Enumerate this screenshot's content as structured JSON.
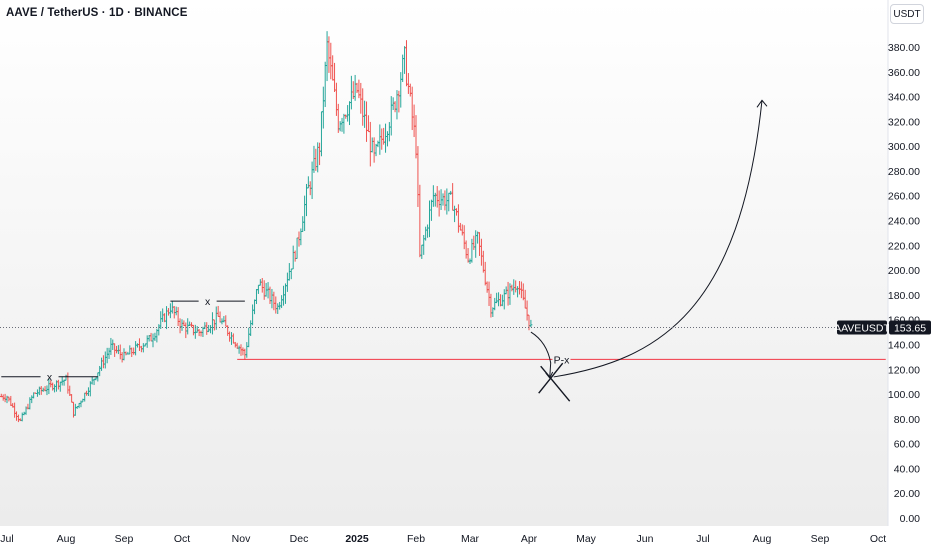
{
  "header": {
    "title": "AAVE / TetherUS · 1D · BINANCE",
    "unit_button": "USDT"
  },
  "price_tag": {
    "symbol": "AAVEUSDT",
    "price": "153.65"
  },
  "colors": {
    "up": "#26a69a",
    "down": "#ef5350",
    "line_level": "#f23645",
    "annotation": "#131722",
    "tag_bg": "#131722"
  },
  "chart_data": {
    "type": "ohlc",
    "title": "AAVE / TetherUS · 1D · BINANCE",
    "y_axis": {
      "ticks": [
        "380.00",
        "360.00",
        "340.00",
        "320.00",
        "300.00",
        "280.00",
        "260.00",
        "240.00",
        "220.00",
        "200.00",
        "180.00",
        "160.00",
        "140.00",
        "120.00",
        "100.00",
        "80.00",
        "60.00",
        "40.00",
        "20.00",
        "0.00"
      ],
      "tick_values": [
        380,
        360,
        340,
        320,
        300,
        280,
        260,
        240,
        220,
        200,
        180,
        160,
        140,
        120,
        100,
        80,
        60,
        40,
        20,
        0
      ],
      "range": [
        0,
        405
      ]
    },
    "x_axis": {
      "ticks": [
        "Jul",
        "Aug",
        "Sep",
        "Oct",
        "Nov",
        "Dec",
        "2025",
        "Feb",
        "Mar",
        "Apr",
        "May",
        "Jun",
        "Jul",
        "Aug",
        "Sep",
        "Oct"
      ],
      "bold": [
        "2025"
      ]
    },
    "price_path": [
      {
        "date": "2024-07-01",
        "close": 98
      },
      {
        "date": "2024-07-08",
        "close": 78
      },
      {
        "date": "2024-07-15",
        "close": 100
      },
      {
        "date": "2024-07-22",
        "close": 105
      },
      {
        "date": "2024-08-01",
        "close": 112
      },
      {
        "date": "2024-08-05",
        "close": 85
      },
      {
        "date": "2024-08-15",
        "close": 110
      },
      {
        "date": "2024-08-25",
        "close": 138
      },
      {
        "date": "2024-09-01",
        "close": 130
      },
      {
        "date": "2024-09-15",
        "close": 145
      },
      {
        "date": "2024-09-25",
        "close": 170
      },
      {
        "date": "2024-10-01",
        "close": 155
      },
      {
        "date": "2024-10-10",
        "close": 150
      },
      {
        "date": "2024-10-20",
        "close": 162
      },
      {
        "date": "2024-10-30",
        "close": 140
      },
      {
        "date": "2024-11-03",
        "close": 132
      },
      {
        "date": "2024-11-10",
        "close": 190
      },
      {
        "date": "2024-11-20",
        "close": 170
      },
      {
        "date": "2024-11-30",
        "close": 220
      },
      {
        "date": "2024-12-05",
        "close": 260
      },
      {
        "date": "2024-12-12",
        "close": 300
      },
      {
        "date": "2024-12-16",
        "close": 380
      },
      {
        "date": "2024-12-22",
        "close": 320
      },
      {
        "date": "2025-01-01",
        "close": 345
      },
      {
        "date": "2025-01-10",
        "close": 290
      },
      {
        "date": "2025-01-20",
        "close": 330
      },
      {
        "date": "2025-01-26",
        "close": 370
      },
      {
        "date": "2025-02-01",
        "close": 300
      },
      {
        "date": "2025-02-03",
        "close": 210
      },
      {
        "date": "2025-02-10",
        "close": 260
      },
      {
        "date": "2025-02-20",
        "close": 255
      },
      {
        "date": "2025-02-28",
        "close": 210
      },
      {
        "date": "2025-03-05",
        "close": 225
      },
      {
        "date": "2025-03-12",
        "close": 170
      },
      {
        "date": "2025-03-20",
        "close": 180
      },
      {
        "date": "2025-03-26",
        "close": 190
      },
      {
        "date": "2025-04-02",
        "close": 153.65
      }
    ],
    "current_price": 153.65,
    "levels": [
      {
        "label": "x",
        "value": 114,
        "from": "2024-06-28",
        "to": "2024-08-18"
      },
      {
        "label": "x",
        "value": 175,
        "from": "2024-09-25",
        "to": "2024-11-03"
      },
      {
        "label": "P-x",
        "value": 128,
        "from": "2024-10-30",
        "to": "2025-10-05"
      }
    ],
    "projection": {
      "path": [
        {
          "date": "2025-04-02",
          "value": 150
        },
        {
          "date": "2025-04-14",
          "value": 130
        },
        {
          "date": "2025-04-14",
          "value": 113
        },
        {
          "date": "2025-07-10",
          "value": 160
        },
        {
          "date": "2025-08-01",
          "value": 337
        }
      ],
      "target_marker": {
        "date": "2025-04-14",
        "value": 112
      }
    },
    "grid": false,
    "legend": "none"
  }
}
